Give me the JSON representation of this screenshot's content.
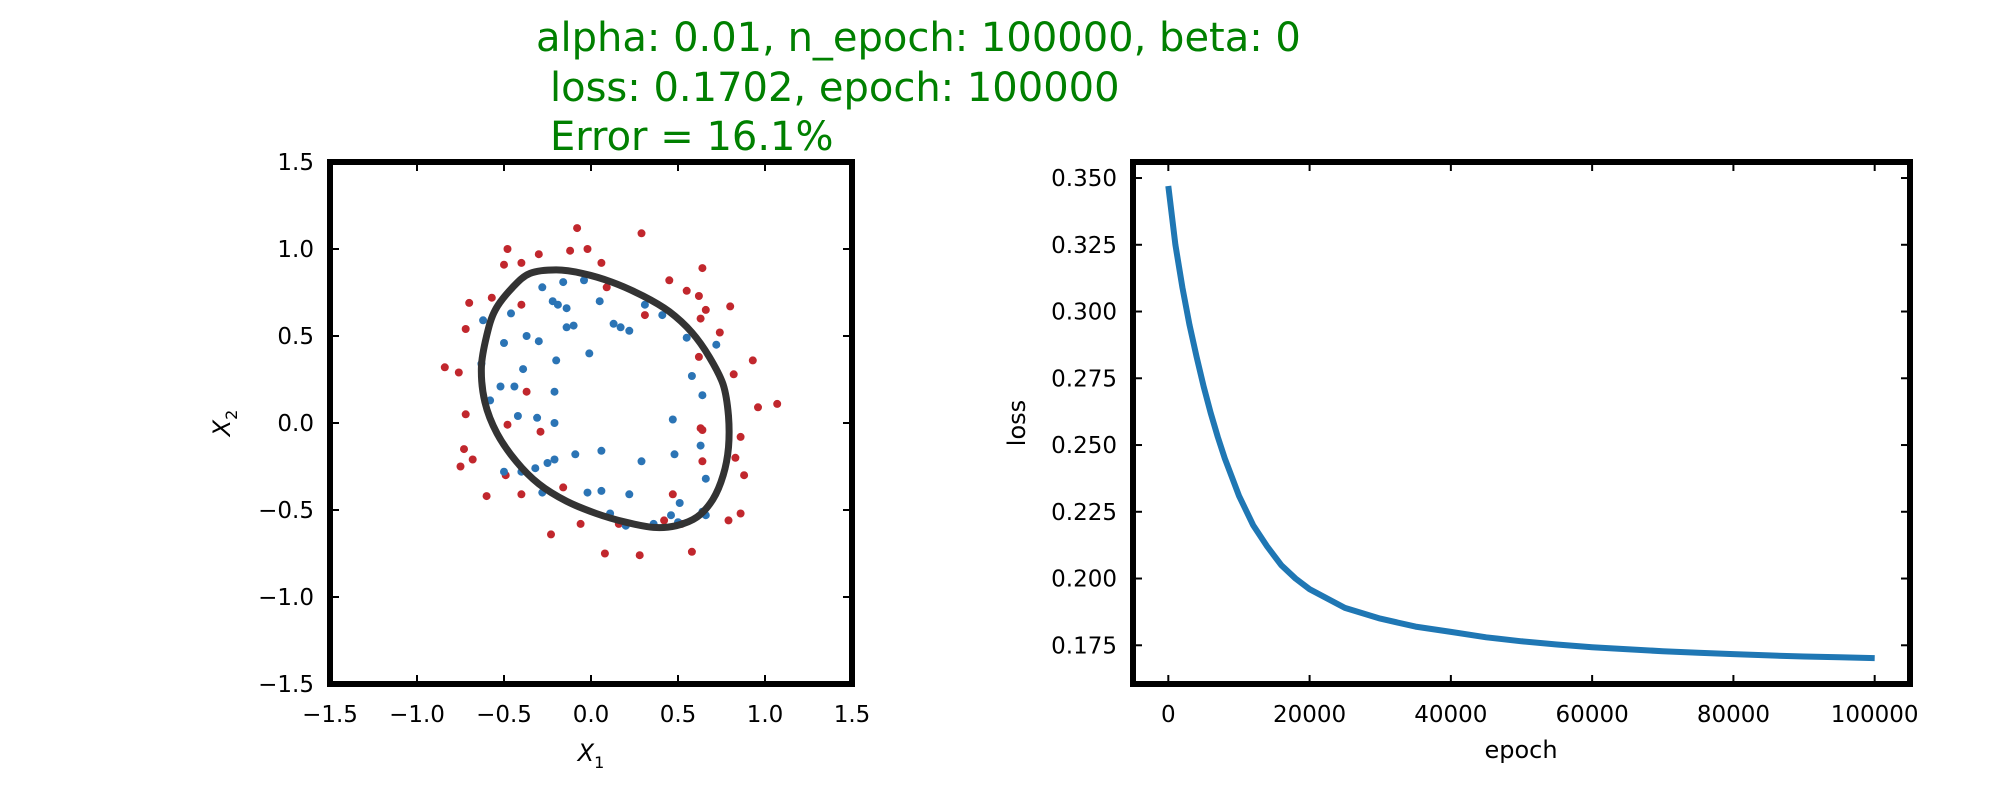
{
  "header": {
    "line1": "alpha: 0.01, n_epoch: 100000, beta: 0",
    "line2": "loss: 0.1702, epoch: 100000",
    "line3": "Error = 16.1%",
    "color": "#008000"
  },
  "chart_data": [
    {
      "type": "scatter",
      "xlabel": "X",
      "xlabel_sub": "1",
      "ylabel": "X",
      "ylabel_sub": "2",
      "xlim": [
        -1.5,
        1.5
      ],
      "ylim": [
        -1.5,
        1.5
      ],
      "xticks": [
        -1.5,
        -1.0,
        -0.5,
        0.0,
        0.5,
        1.0,
        1.5
      ],
      "yticks": [
        -1.5,
        -1.0,
        -0.5,
        0.0,
        0.5,
        1.0,
        1.5
      ],
      "xtick_labels": [
        "−1.5",
        "−1.0",
        "−0.5",
        "0.0",
        "0.5",
        "1.0",
        "1.5"
      ],
      "ytick_labels": [
        "−1.5",
        "−1.0",
        "−0.5",
        "0.0",
        "0.5",
        "1.0",
        "1.5"
      ],
      "grid": false,
      "series": [
        {
          "color": "#c1272d",
          "points": [
            [
              -0.84,
              0.32
            ],
            [
              -0.76,
              0.29
            ],
            [
              -0.72,
              0.54
            ],
            [
              -0.7,
              0.69
            ],
            [
              -0.72,
              0.05
            ],
            [
              -0.73,
              -0.15
            ],
            [
              -0.75,
              -0.25
            ],
            [
              -0.68,
              -0.21
            ],
            [
              -0.6,
              -0.42
            ],
            [
              -0.57,
              0.72
            ],
            [
              -0.5,
              0.91
            ],
            [
              -0.48,
              1.0
            ],
            [
              -0.4,
              0.92
            ],
            [
              -0.3,
              0.97
            ],
            [
              -0.08,
              1.12
            ],
            [
              -0.12,
              0.99
            ],
            [
              -0.02,
              1.0
            ],
            [
              0.06,
              0.92
            ],
            [
              0.29,
              1.09
            ],
            [
              0.45,
              0.82
            ],
            [
              0.64,
              0.89
            ],
            [
              0.66,
              0.65
            ],
            [
              0.62,
              0.73
            ],
            [
              0.55,
              0.76
            ],
            [
              0.8,
              0.67
            ],
            [
              0.74,
              0.52
            ],
            [
              0.93,
              0.36
            ],
            [
              0.82,
              0.28
            ],
            [
              0.96,
              0.09
            ],
            [
              1.07,
              0.11
            ],
            [
              0.86,
              -0.08
            ],
            [
              0.63,
              -0.03
            ],
            [
              0.83,
              -0.2
            ],
            [
              0.88,
              -0.3
            ],
            [
              0.86,
              -0.52
            ],
            [
              0.79,
              -0.56
            ],
            [
              0.47,
              -0.41
            ],
            [
              0.58,
              -0.74
            ],
            [
              0.52,
              -0.58
            ],
            [
              0.28,
              -0.76
            ],
            [
              0.08,
              -0.75
            ],
            [
              -0.23,
              -0.64
            ],
            [
              -0.06,
              -0.58
            ],
            [
              -0.16,
              -0.37
            ],
            [
              -0.4,
              -0.41
            ],
            [
              -0.49,
              -0.3
            ],
            [
              -0.29,
              -0.05
            ],
            [
              -0.48,
              -0.01
            ],
            [
              -0.37,
              0.18
            ],
            [
              -0.4,
              0.68
            ],
            [
              0.09,
              0.78
            ],
            [
              0.31,
              0.62
            ],
            [
              0.63,
              0.6
            ],
            [
              0.62,
              0.38
            ],
            [
              0.64,
              -0.04
            ],
            [
              0.64,
              -0.22
            ],
            [
              0.42,
              -0.56
            ],
            [
              0.16,
              -0.58
            ]
          ]
        },
        {
          "color": "#2b74b5",
          "points": [
            [
              -0.63,
              0.34
            ],
            [
              -0.58,
              0.13
            ],
            [
              -0.62,
              0.59
            ],
            [
              -0.52,
              0.21
            ],
            [
              -0.44,
              0.21
            ],
            [
              -0.5,
              0.46
            ],
            [
              -0.46,
              0.63
            ],
            [
              -0.37,
              0.5
            ],
            [
              -0.39,
              0.31
            ],
            [
              -0.28,
              0.78
            ],
            [
              -0.22,
              0.7
            ],
            [
              -0.16,
              0.81
            ],
            [
              -0.04,
              0.82
            ],
            [
              -0.14,
              0.66
            ],
            [
              -0.19,
              0.68
            ],
            [
              -0.14,
              0.55
            ],
            [
              -0.1,
              0.56
            ],
            [
              -0.3,
              0.47
            ],
            [
              -0.2,
              0.36
            ],
            [
              -0.01,
              0.4
            ],
            [
              0.05,
              0.7
            ],
            [
              0.13,
              0.57
            ],
            [
              0.17,
              0.55
            ],
            [
              0.22,
              0.53
            ],
            [
              0.31,
              0.68
            ],
            [
              0.41,
              0.62
            ],
            [
              0.55,
              0.49
            ],
            [
              0.58,
              0.27
            ],
            [
              0.64,
              0.16
            ],
            [
              0.72,
              0.45
            ],
            [
              0.47,
              0.02
            ],
            [
              0.63,
              -0.13
            ],
            [
              0.48,
              -0.18
            ],
            [
              0.29,
              -0.22
            ],
            [
              0.66,
              -0.32
            ],
            [
              0.51,
              -0.46
            ],
            [
              0.64,
              -0.51
            ],
            [
              0.66,
              -0.53
            ],
            [
              0.46,
              -0.53
            ],
            [
              0.5,
              -0.57
            ],
            [
              0.36,
              -0.58
            ],
            [
              0.2,
              -0.59
            ],
            [
              0.11,
              -0.52
            ],
            [
              0.22,
              -0.41
            ],
            [
              0.06,
              -0.39
            ],
            [
              -0.02,
              -0.4
            ],
            [
              -0.09,
              -0.18
            ],
            [
              0.06,
              -0.16
            ],
            [
              -0.21,
              -0.21
            ],
            [
              -0.25,
              -0.23
            ],
            [
              -0.28,
              -0.4
            ],
            [
              -0.32,
              -0.26
            ],
            [
              -0.4,
              -0.28
            ],
            [
              -0.5,
              -0.28
            ],
            [
              -0.42,
              0.04
            ],
            [
              -0.31,
              0.03
            ],
            [
              -0.21,
              0.0
            ],
            [
              -0.21,
              0.18
            ]
          ]
        }
      ],
      "boundary": {
        "color": "#333333",
        "points": [
          [
            -0.6,
            0.5
          ],
          [
            -0.55,
            0.65
          ],
          [
            -0.45,
            0.78
          ],
          [
            -0.35,
            0.86
          ],
          [
            -0.2,
            0.88
          ],
          [
            -0.05,
            0.86
          ],
          [
            0.12,
            0.81
          ],
          [
            0.3,
            0.73
          ],
          [
            0.45,
            0.64
          ],
          [
            0.58,
            0.52
          ],
          [
            0.68,
            0.38
          ],
          [
            0.76,
            0.22
          ],
          [
            0.79,
            0.04
          ],
          [
            0.79,
            -0.14
          ],
          [
            0.76,
            -0.3
          ],
          [
            0.7,
            -0.44
          ],
          [
            0.61,
            -0.54
          ],
          [
            0.49,
            -0.59
          ],
          [
            0.36,
            -0.6
          ],
          [
            0.2,
            -0.57
          ],
          [
            0.03,
            -0.52
          ],
          [
            -0.14,
            -0.45
          ],
          [
            -0.3,
            -0.35
          ],
          [
            -0.43,
            -0.22
          ],
          [
            -0.54,
            -0.06
          ],
          [
            -0.61,
            0.12
          ],
          [
            -0.63,
            0.32
          ],
          [
            -0.6,
            0.5
          ]
        ]
      }
    },
    {
      "type": "line",
      "xlabel": "epoch",
      "ylabel": "loss",
      "xlim": [
        -5000,
        105000
      ],
      "ylim": [
        0.1605,
        0.356
      ],
      "xticks": [
        0,
        20000,
        40000,
        60000,
        80000,
        100000
      ],
      "yticks": [
        0.175,
        0.2,
        0.225,
        0.25,
        0.275,
        0.3,
        0.325,
        0.35
      ],
      "xtick_labels": [
        "0",
        "20000",
        "40000",
        "60000",
        "80000",
        "100000"
      ],
      "ytick_labels": [
        "0.175",
        "0.200",
        "0.225",
        "0.250",
        "0.275",
        "0.300",
        "0.325",
        "0.350"
      ],
      "grid": false,
      "series": [
        {
          "color": "#1f77b4",
          "x": [
            0,
            1000,
            2000,
            3000,
            4000,
            5000,
            6000,
            7000,
            8000,
            9000,
            10000,
            12000,
            14000,
            16000,
            18000,
            20000,
            25000,
            30000,
            35000,
            40000,
            45000,
            50000,
            55000,
            60000,
            65000,
            70000,
            75000,
            80000,
            85000,
            90000,
            95000,
            100000
          ],
          "y": [
            0.347,
            0.325,
            0.309,
            0.295,
            0.283,
            0.272,
            0.262,
            0.253,
            0.245,
            0.238,
            0.231,
            0.22,
            0.212,
            0.205,
            0.2,
            0.196,
            0.189,
            0.185,
            0.182,
            0.18,
            0.178,
            0.1765,
            0.1753,
            0.1743,
            0.1735,
            0.1728,
            0.1722,
            0.1717,
            0.1712,
            0.1708,
            0.1705,
            0.1702
          ]
        }
      ]
    }
  ]
}
